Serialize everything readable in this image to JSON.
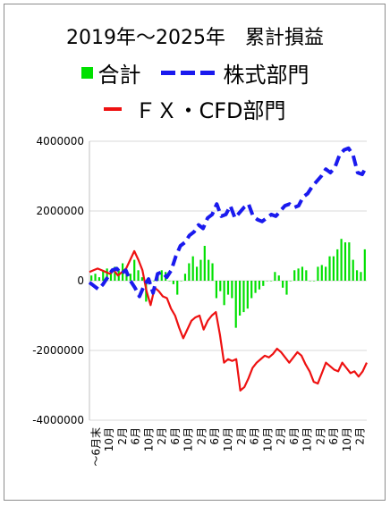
{
  "chart_data": {
    "type": "line",
    "title": "2019年～2025年　累計損益",
    "ylim": [
      -4000000,
      4000000
    ],
    "yticks": [
      4000000,
      2000000,
      0,
      -2000000,
      -4000000
    ],
    "ytick_labels": [
      "4000000",
      "2000000",
      "0",
      "-2000000",
      "-4000000"
    ],
    "legend_placement": "top",
    "grid": true,
    "x_tick_labels": [
      "～6月末",
      "10月",
      "2月",
      "6月",
      "10月",
      "2月",
      "6月",
      "10月",
      "2月",
      "6月",
      "10月",
      "2月",
      "6月",
      "10月",
      "2月",
      "6月",
      "10月",
      "2月",
      "6月",
      "10月",
      "2月"
    ],
    "series": [
      {
        "name": "合計",
        "kind": "bar",
        "color": "#00e000",
        "values": [
          150000,
          200000,
          100000,
          300000,
          350000,
          250000,
          400000,
          300000,
          500000,
          300000,
          200000,
          600000,
          300000,
          100000,
          -600000,
          -100000,
          0,
          200000,
          300000,
          250000,
          0,
          -100000,
          -400000,
          0,
          200000,
          500000,
          700000,
          400000,
          600000,
          1000000,
          600000,
          500000,
          -500000,
          -300000,
          -700000,
          -400000,
          -500000,
          -1350000,
          -1000000,
          -900000,
          -800000,
          -500000,
          -350000,
          -250000,
          -150000,
          0,
          0,
          250000,
          150000,
          -200000,
          -400000,
          0,
          300000,
          350000,
          400000,
          300000,
          0,
          0,
          400000,
          450000,
          400000,
          700000,
          700000,
          900000,
          1200000,
          1100000,
          1100000,
          600000,
          300000,
          250000,
          900000
        ]
      },
      {
        "name": "株式部門",
        "kind": "dashed-line",
        "color": "#1a1aee",
        "values": [
          -50000,
          -150000,
          -250000,
          -100000,
          100000,
          300000,
          350000,
          200000,
          300000,
          0,
          -200000,
          -450000,
          -150000,
          50000,
          -350000,
          200000,
          250000,
          100000,
          300000,
          700000,
          1000000,
          1100000,
          1300000,
          1400000,
          1600000,
          1500000,
          1800000,
          1900000,
          2200000,
          1850000,
          1900000,
          2150000,
          1800000,
          1950000,
          2100000,
          2200000,
          1850000,
          1750000,
          1700000,
          1800000,
          1900000,
          1850000,
          2000000,
          2150000,
          2200000,
          2100000,
          2150000,
          2400000,
          2500000,
          2700000,
          2850000,
          3000000,
          3200000,
          3100000,
          3250000,
          3600000,
          3750000,
          3800000,
          3600000,
          3100000,
          3050000,
          3300000
        ]
      },
      {
        "name": "ＦＸ・CFD部門",
        "kind": "line",
        "color": "#ee1111",
        "values": [
          250000,
          300000,
          350000,
          300000,
          250000,
          200000,
          300000,
          150000,
          250000,
          350000,
          600000,
          850000,
          600000,
          300000,
          -300000,
          -700000,
          -200000,
          -300000,
          -450000,
          -500000,
          -800000,
          -1000000,
          -1350000,
          -1650000,
          -1400000,
          -1150000,
          -1050000,
          -1000000,
          -1400000,
          -1150000,
          -1000000,
          -900000,
          -1550000,
          -2350000,
          -2250000,
          -2300000,
          -2250000,
          -3150000,
          -3050000,
          -2800000,
          -2500000,
          -2350000,
          -2250000,
          -2150000,
          -2200000,
          -2100000,
          -1950000,
          -2050000,
          -2200000,
          -2350000,
          -2200000,
          -2050000,
          -2150000,
          -2400000,
          -2600000,
          -2900000,
          -2950000,
          -2650000,
          -2350000,
          -2450000,
          -2550000,
          -2600000,
          -2350000,
          -2500000,
          -2650000,
          -2600000,
          -2750000,
          -2600000,
          -2350000
        ]
      }
    ]
  }
}
